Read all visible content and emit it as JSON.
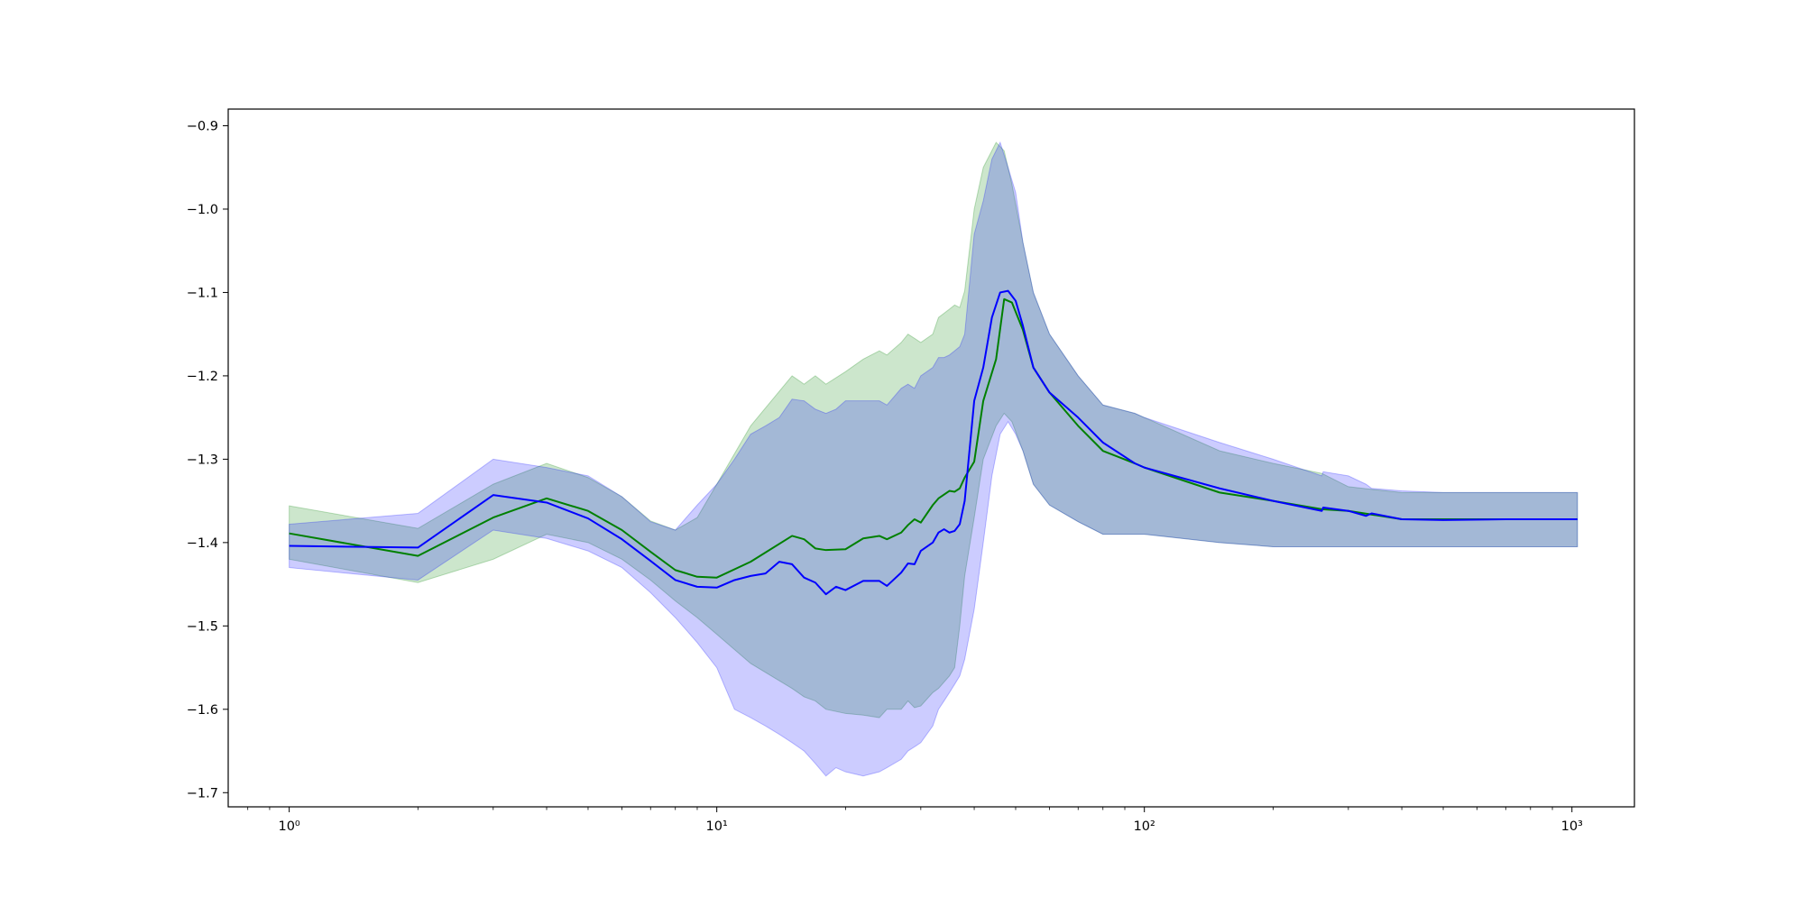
{
  "chart_data": {
    "type": "line",
    "title": "",
    "xlabel": "",
    "ylabel": "",
    "x_scale": "log",
    "xlim": [
      0.72,
      1400
    ],
    "ylim": [
      -1.717,
      -0.88
    ],
    "grid": false,
    "x_ticks": [
      {
        "value": 1,
        "label": "10⁰"
      },
      {
        "value": 10,
        "label": "10¹"
      },
      {
        "value": 100,
        "label": "10²"
      },
      {
        "value": 1000,
        "label": "10³"
      }
    ],
    "y_ticks": [
      {
        "value": -0.9,
        "label": "−0.9"
      },
      {
        "value": -1.0,
        "label": "−1.0"
      },
      {
        "value": -1.1,
        "label": "−1.1"
      },
      {
        "value": -1.2,
        "label": "−1.2"
      },
      {
        "value": -1.3,
        "label": "−1.3"
      },
      {
        "value": -1.4,
        "label": "−1.4"
      },
      {
        "value": -1.5,
        "label": "−1.5"
      },
      {
        "value": -1.6,
        "label": "−1.6"
      },
      {
        "value": -1.7,
        "label": "−1.7"
      }
    ],
    "series": [
      {
        "color": "#008000",
        "band_color": "#008000",
        "band_opacity": 0.2,
        "x": [
          1,
          2,
          3,
          4,
          5,
          6,
          7,
          8,
          9,
          10,
          12,
          15,
          16,
          17,
          18,
          20,
          22,
          24,
          25,
          27,
          28,
          29,
          30,
          32,
          33,
          35,
          36,
          37,
          38,
          40,
          42,
          45,
          47,
          49,
          52,
          55,
          60,
          70,
          80,
          95,
          100,
          150,
          200,
          260,
          300,
          400,
          500,
          700,
          1000,
          1030
        ],
        "mean": [
          -1.389,
          -1.416,
          -1.37,
          -1.347,
          -1.362,
          -1.385,
          -1.411,
          -1.433,
          -1.441,
          -1.442,
          -1.423,
          -1.392,
          -1.396,
          -1.407,
          -1.409,
          -1.408,
          -1.395,
          -1.392,
          -1.396,
          -1.388,
          -1.379,
          -1.372,
          -1.376,
          -1.355,
          -1.347,
          -1.338,
          -1.339,
          -1.335,
          -1.322,
          -1.303,
          -1.23,
          -1.18,
          -1.108,
          -1.112,
          -1.145,
          -1.19,
          -1.22,
          -1.26,
          -1.29,
          -1.305,
          -1.31,
          -1.34,
          -1.35,
          -1.36,
          -1.362,
          -1.372,
          -1.372,
          -1.372,
          -1.372,
          -1.372
        ],
        "upper": [
          -1.356,
          -1.383,
          -1.33,
          -1.305,
          -1.322,
          -1.345,
          -1.374,
          -1.385,
          -1.37,
          -1.33,
          -1.26,
          -1.2,
          -1.21,
          -1.2,
          -1.21,
          -1.195,
          -1.18,
          -1.17,
          -1.175,
          -1.16,
          -1.15,
          -1.155,
          -1.16,
          -1.15,
          -1.13,
          -1.12,
          -1.115,
          -1.118,
          -1.098,
          -1.0,
          -0.95,
          -0.92,
          -0.93,
          -0.97,
          -1.04,
          -1.1,
          -1.15,
          -1.2,
          -1.235,
          -1.245,
          -1.25,
          -1.29,
          -1.305,
          -1.317,
          -1.333,
          -1.34,
          -1.34,
          -1.34,
          -1.34,
          -1.34
        ],
        "lower": [
          -1.42,
          -1.448,
          -1.42,
          -1.39,
          -1.4,
          -1.42,
          -1.445,
          -1.47,
          -1.49,
          -1.51,
          -1.545,
          -1.575,
          -1.585,
          -1.59,
          -1.6,
          -1.605,
          -1.607,
          -1.61,
          -1.6,
          -1.6,
          -1.59,
          -1.598,
          -1.596,
          -1.58,
          -1.575,
          -1.56,
          -1.55,
          -1.5,
          -1.44,
          -1.37,
          -1.3,
          -1.26,
          -1.245,
          -1.255,
          -1.29,
          -1.33,
          -1.355,
          -1.375,
          -1.39,
          -1.39,
          -1.39,
          -1.4,
          -1.405,
          -1.405,
          -1.405,
          -1.405,
          -1.405,
          -1.405,
          -1.405,
          -1.405
        ]
      },
      {
        "color": "#0000ff",
        "band_color": "#0000ff",
        "band_opacity": 0.2,
        "x": [
          1,
          2,
          3,
          4,
          5,
          6,
          7,
          8,
          9,
          10,
          11,
          12,
          13,
          14,
          15,
          16,
          17,
          18,
          19,
          20,
          22,
          24,
          25,
          27,
          28,
          29,
          30,
          32,
          33,
          34,
          35,
          36,
          37,
          38,
          40,
          42,
          44,
          46,
          48,
          50,
          52,
          55,
          60,
          70,
          80,
          95,
          100,
          150,
          200,
          260,
          262,
          300,
          330,
          340,
          400,
          500,
          700,
          1000,
          1030
        ],
        "mean": [
          -1.404,
          -1.406,
          -1.343,
          -1.352,
          -1.371,
          -1.396,
          -1.422,
          -1.445,
          -1.453,
          -1.454,
          -1.445,
          -1.44,
          -1.437,
          -1.423,
          -1.426,
          -1.442,
          -1.448,
          -1.462,
          -1.453,
          -1.457,
          -1.446,
          -1.446,
          -1.452,
          -1.436,
          -1.425,
          -1.426,
          -1.41,
          -1.4,
          -1.388,
          -1.384,
          -1.388,
          -1.386,
          -1.378,
          -1.35,
          -1.23,
          -1.19,
          -1.13,
          -1.1,
          -1.098,
          -1.11,
          -1.14,
          -1.19,
          -1.22,
          -1.25,
          -1.28,
          -1.305,
          -1.31,
          -1.335,
          -1.35,
          -1.362,
          -1.358,
          -1.362,
          -1.368,
          -1.365,
          -1.372,
          -1.373,
          -1.372,
          -1.372,
          -1.372
        ],
        "upper": [
          -1.378,
          -1.365,
          -1.3,
          -1.31,
          -1.32,
          -1.345,
          -1.375,
          -1.385,
          -1.355,
          -1.33,
          -1.3,
          -1.27,
          -1.26,
          -1.25,
          -1.228,
          -1.23,
          -1.24,
          -1.245,
          -1.24,
          -1.23,
          -1.23,
          -1.23,
          -1.235,
          -1.215,
          -1.21,
          -1.215,
          -1.2,
          -1.19,
          -1.178,
          -1.178,
          -1.175,
          -1.17,
          -1.165,
          -1.15,
          -1.03,
          -0.99,
          -0.94,
          -0.92,
          -0.95,
          -0.98,
          -1.04,
          -1.1,
          -1.15,
          -1.2,
          -1.235,
          -1.245,
          -1.25,
          -1.28,
          -1.3,
          -1.32,
          -1.315,
          -1.32,
          -1.33,
          -1.335,
          -1.338,
          -1.34,
          -1.34,
          -1.34,
          -1.34
        ],
        "lower": [
          -1.43,
          -1.445,
          -1.385,
          -1.395,
          -1.41,
          -1.43,
          -1.46,
          -1.49,
          -1.52,
          -1.55,
          -1.6,
          -1.61,
          -1.62,
          -1.63,
          -1.64,
          -1.65,
          -1.665,
          -1.68,
          -1.67,
          -1.675,
          -1.68,
          -1.675,
          -1.67,
          -1.66,
          -1.65,
          -1.645,
          -1.64,
          -1.62,
          -1.6,
          -1.59,
          -1.58,
          -1.57,
          -1.56,
          -1.54,
          -1.48,
          -1.4,
          -1.32,
          -1.27,
          -1.255,
          -1.27,
          -1.29,
          -1.33,
          -1.355,
          -1.375,
          -1.39,
          -1.39,
          -1.39,
          -1.4,
          -1.405,
          -1.405,
          -1.405,
          -1.405,
          -1.405,
          -1.405,
          -1.405,
          -1.405,
          -1.405,
          -1.405,
          -1.405
        ]
      }
    ]
  }
}
